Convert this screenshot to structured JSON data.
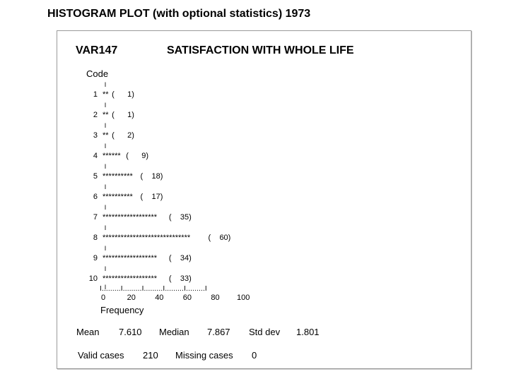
{
  "page": {
    "title": "HISTOGRAM PLOT (with optional statistics) 1973"
  },
  "variable": {
    "code": "VAR147",
    "label": "SATISFACTION WITH WHOLE LIFE"
  },
  "code_header": "Code",
  "separator": "I",
  "axis": {
    "line": "I.........I.........I.........I.........I.........I",
    "ticks": [
      "0",
      "20",
      "40",
      "60",
      "80",
      "100"
    ],
    "label": "Frequency"
  },
  "stats": {
    "mean_label": "Mean",
    "mean_value": "7.610",
    "median_label": "Median",
    "median_value": "7.867",
    "std_label": "Std dev",
    "std_value": "1.801",
    "valid_label": "Valid cases",
    "valid_value": "210",
    "missing_label": "Missing cases",
    "missing_value": "0"
  },
  "chart_data": {
    "type": "bar",
    "orientation": "horizontal",
    "categories": [
      "1",
      "2",
      "3",
      "4",
      "5",
      "6",
      "7",
      "8",
      "9",
      "10"
    ],
    "values": [
      1,
      1,
      2,
      9,
      18,
      17,
      35,
      60,
      34,
      33
    ],
    "bar_text": [
      "**",
      "**",
      "**",
      "******",
      "**********",
      "**********",
      "******************",
      "*****************************",
      "******************",
      "******************"
    ],
    "xlabel": "Frequency",
    "ylabel": "Code",
    "xlim": [
      0,
      100
    ]
  }
}
